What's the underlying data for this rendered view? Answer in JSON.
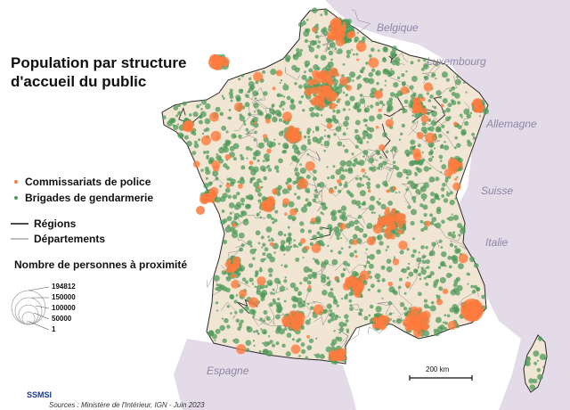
{
  "title": {
    "line1": "Population par structure",
    "line2": "d'accueil du public"
  },
  "countries": {
    "belgique": "Belgique",
    "luxembourg": "Luxembourg",
    "allemagne": "Allemagne",
    "suisse": "Suisse",
    "italie": "Italie",
    "espagne": "Espagne"
  },
  "legend": {
    "police": "Commissariats de police",
    "gendarmerie": "Brigades de gendarmerie",
    "regions": "Régions",
    "departements": "Départements",
    "size_title": "Nombre de personnes à proximité",
    "sizes": [
      "194812",
      "150000",
      "100000",
      "50000",
      "1"
    ]
  },
  "scale": "200 km",
  "logo": "SSMSI",
  "source": "Sources : Ministère de l'Intérieur, IGN - Juin 2023",
  "colors": {
    "police": "#ff7a3d",
    "gendarmerie": "#4e9a5a",
    "land": "#f1e6d3",
    "neighbors": "#e3dbe8",
    "sea": "#ffffff"
  }
}
